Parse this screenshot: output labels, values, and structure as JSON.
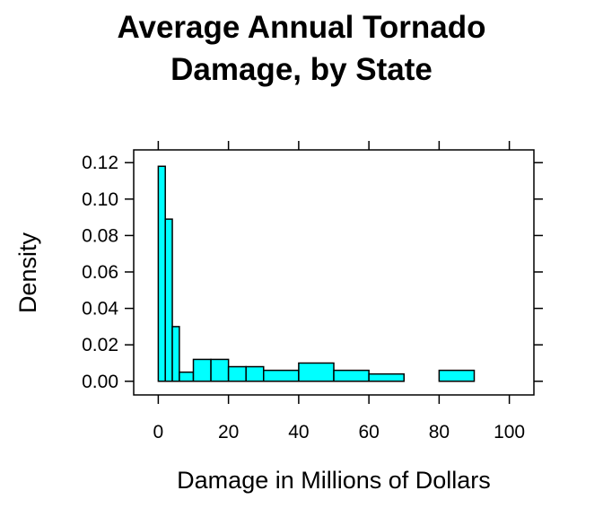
{
  "chart_data": {
    "type": "bar",
    "title_lines": [
      "Average Annual Tornado",
      "Damage, by State"
    ],
    "xlabel": "Damage in Millions of Dollars",
    "ylabel": "Density",
    "xlim": [
      -7,
      107
    ],
    "ylim": [
      -0.0075,
      0.127
    ],
    "x_ticks": [
      0,
      20,
      40,
      60,
      80,
      100
    ],
    "y_ticks": [
      0.0,
      0.02,
      0.04,
      0.06,
      0.08,
      0.1,
      0.12
    ],
    "x_tick_labels": [
      "0",
      "20",
      "40",
      "60",
      "80",
      "100"
    ],
    "y_tick_labels": [
      "0.00",
      "0.02",
      "0.04",
      "0.06",
      "0.08",
      "0.10",
      "0.12"
    ],
    "bin_edges": [
      0,
      2,
      4,
      6,
      10,
      15,
      20,
      25,
      30,
      40,
      50,
      60,
      70,
      80,
      90,
      100
    ],
    "values": [
      0.118,
      0.089,
      0.03,
      0.005,
      0.012,
      0.012,
      0.008,
      0.008,
      0.006,
      0.01,
      0.006,
      0.004,
      0.0,
      0.006,
      0.0
    ],
    "bar_color": "#00FFFF",
    "outline_color": "#000000",
    "grid": false
  }
}
